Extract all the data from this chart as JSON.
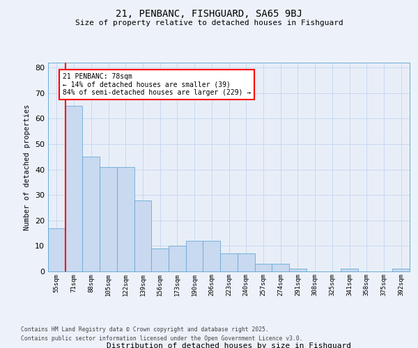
{
  "title1": "21, PENBANC, FISHGUARD, SA65 9BJ",
  "title2": "Size of property relative to detached houses in Fishguard",
  "xlabel": "Distribution of detached houses by size in Fishguard",
  "ylabel": "Number of detached properties",
  "bins": [
    "55sqm",
    "71sqm",
    "88sqm",
    "105sqm",
    "122sqm",
    "139sqm",
    "156sqm",
    "173sqm",
    "190sqm",
    "206sqm",
    "223sqm",
    "240sqm",
    "257sqm",
    "274sqm",
    "291sqm",
    "308sqm",
    "325sqm",
    "341sqm",
    "358sqm",
    "375sqm",
    "392sqm"
  ],
  "values": [
    17,
    65,
    45,
    41,
    41,
    28,
    9,
    10,
    12,
    12,
    7,
    7,
    3,
    3,
    1,
    0,
    0,
    1,
    0,
    0,
    1
  ],
  "bar_color": "#c8d9f0",
  "bar_edge_color": "#6aaad4",
  "grid_color": "#c8d9f0",
  "red_line_x": 1,
  "annotation_text": "21 PENBANC: 78sqm\n← 14% of detached houses are smaller (39)\n84% of semi-detached houses are larger (229) →",
  "annotation_box_color": "white",
  "annotation_box_edge": "red",
  "footer1": "Contains HM Land Registry data © Crown copyright and database right 2025.",
  "footer2": "Contains public sector information licensed under the Open Government Licence v3.0.",
  "ylim": [
    0,
    82
  ],
  "yticks": [
    0,
    10,
    20,
    30,
    40,
    50,
    60,
    70,
    80
  ],
  "background_color": "#edf2fa",
  "bg_inner": "#e8eef8"
}
